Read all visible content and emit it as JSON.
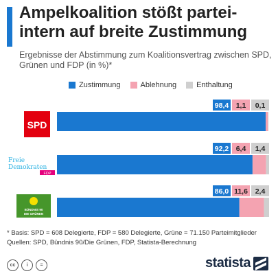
{
  "header": {
    "title": "Ampelkoalition stößt partei-intern auf breite Zustimmung",
    "subtitle": "Ergebnisse der Abstimmung zum Koalitionsvertrag zwischen SPD, Grünen und FDP (in %)*"
  },
  "colors": {
    "accent": "#1a78d0",
    "zustimmung": "#1a78d0",
    "ablehnung": "#f4a3b1",
    "enthaltung": "#cfcfcf",
    "spd_red": "#e3000f",
    "fdp_magenta": "#e5007d",
    "fdp_cyan": "#2eb3e3",
    "green": "#46962b"
  },
  "logos": {
    "spd": "SPD",
    "fdp_line1": "Freie",
    "fdp_line2": "Demokraten",
    "fdp_line3": "FDP",
    "gruene_line1": "BÜNDNIS 90",
    "gruene_line2": "DIE GRÜNEN"
  },
  "chart_data": {
    "type": "bar",
    "orientation": "horizontal",
    "stacked": true,
    "categories": [
      "SPD",
      "FDP",
      "Grüne"
    ],
    "series": [
      {
        "name": "Zustimmung",
        "values": [
          98.4,
          92.2,
          86.0
        ],
        "labels": [
          "98,4",
          "92,2",
          "86,0"
        ]
      },
      {
        "name": "Ablehnung",
        "values": [
          1.1,
          6.4,
          11.6
        ],
        "labels": [
          "1,1",
          "6,4",
          "11,6"
        ]
      },
      {
        "name": "Enthaltung",
        "values": [
          0.1,
          1.4,
          2.4
        ],
        "labels": [
          "0,1",
          "1,4",
          "2,4"
        ]
      }
    ],
    "xlim": [
      0,
      100
    ],
    "legend_position": "top",
    "grid": false
  },
  "footer": {
    "note": "* Basis: SPD = 608 Delegierte, FDP = 580 Delegierte, Grüne = 71.150 Parteimitglieder",
    "sources": "Quellen: SPD, Bündnis 90/Die Grünen, FDP, Statista-Berechnung",
    "brand": "statista",
    "icon_cc": "cc",
    "icon_by": "i",
    "icon_nd": "="
  }
}
